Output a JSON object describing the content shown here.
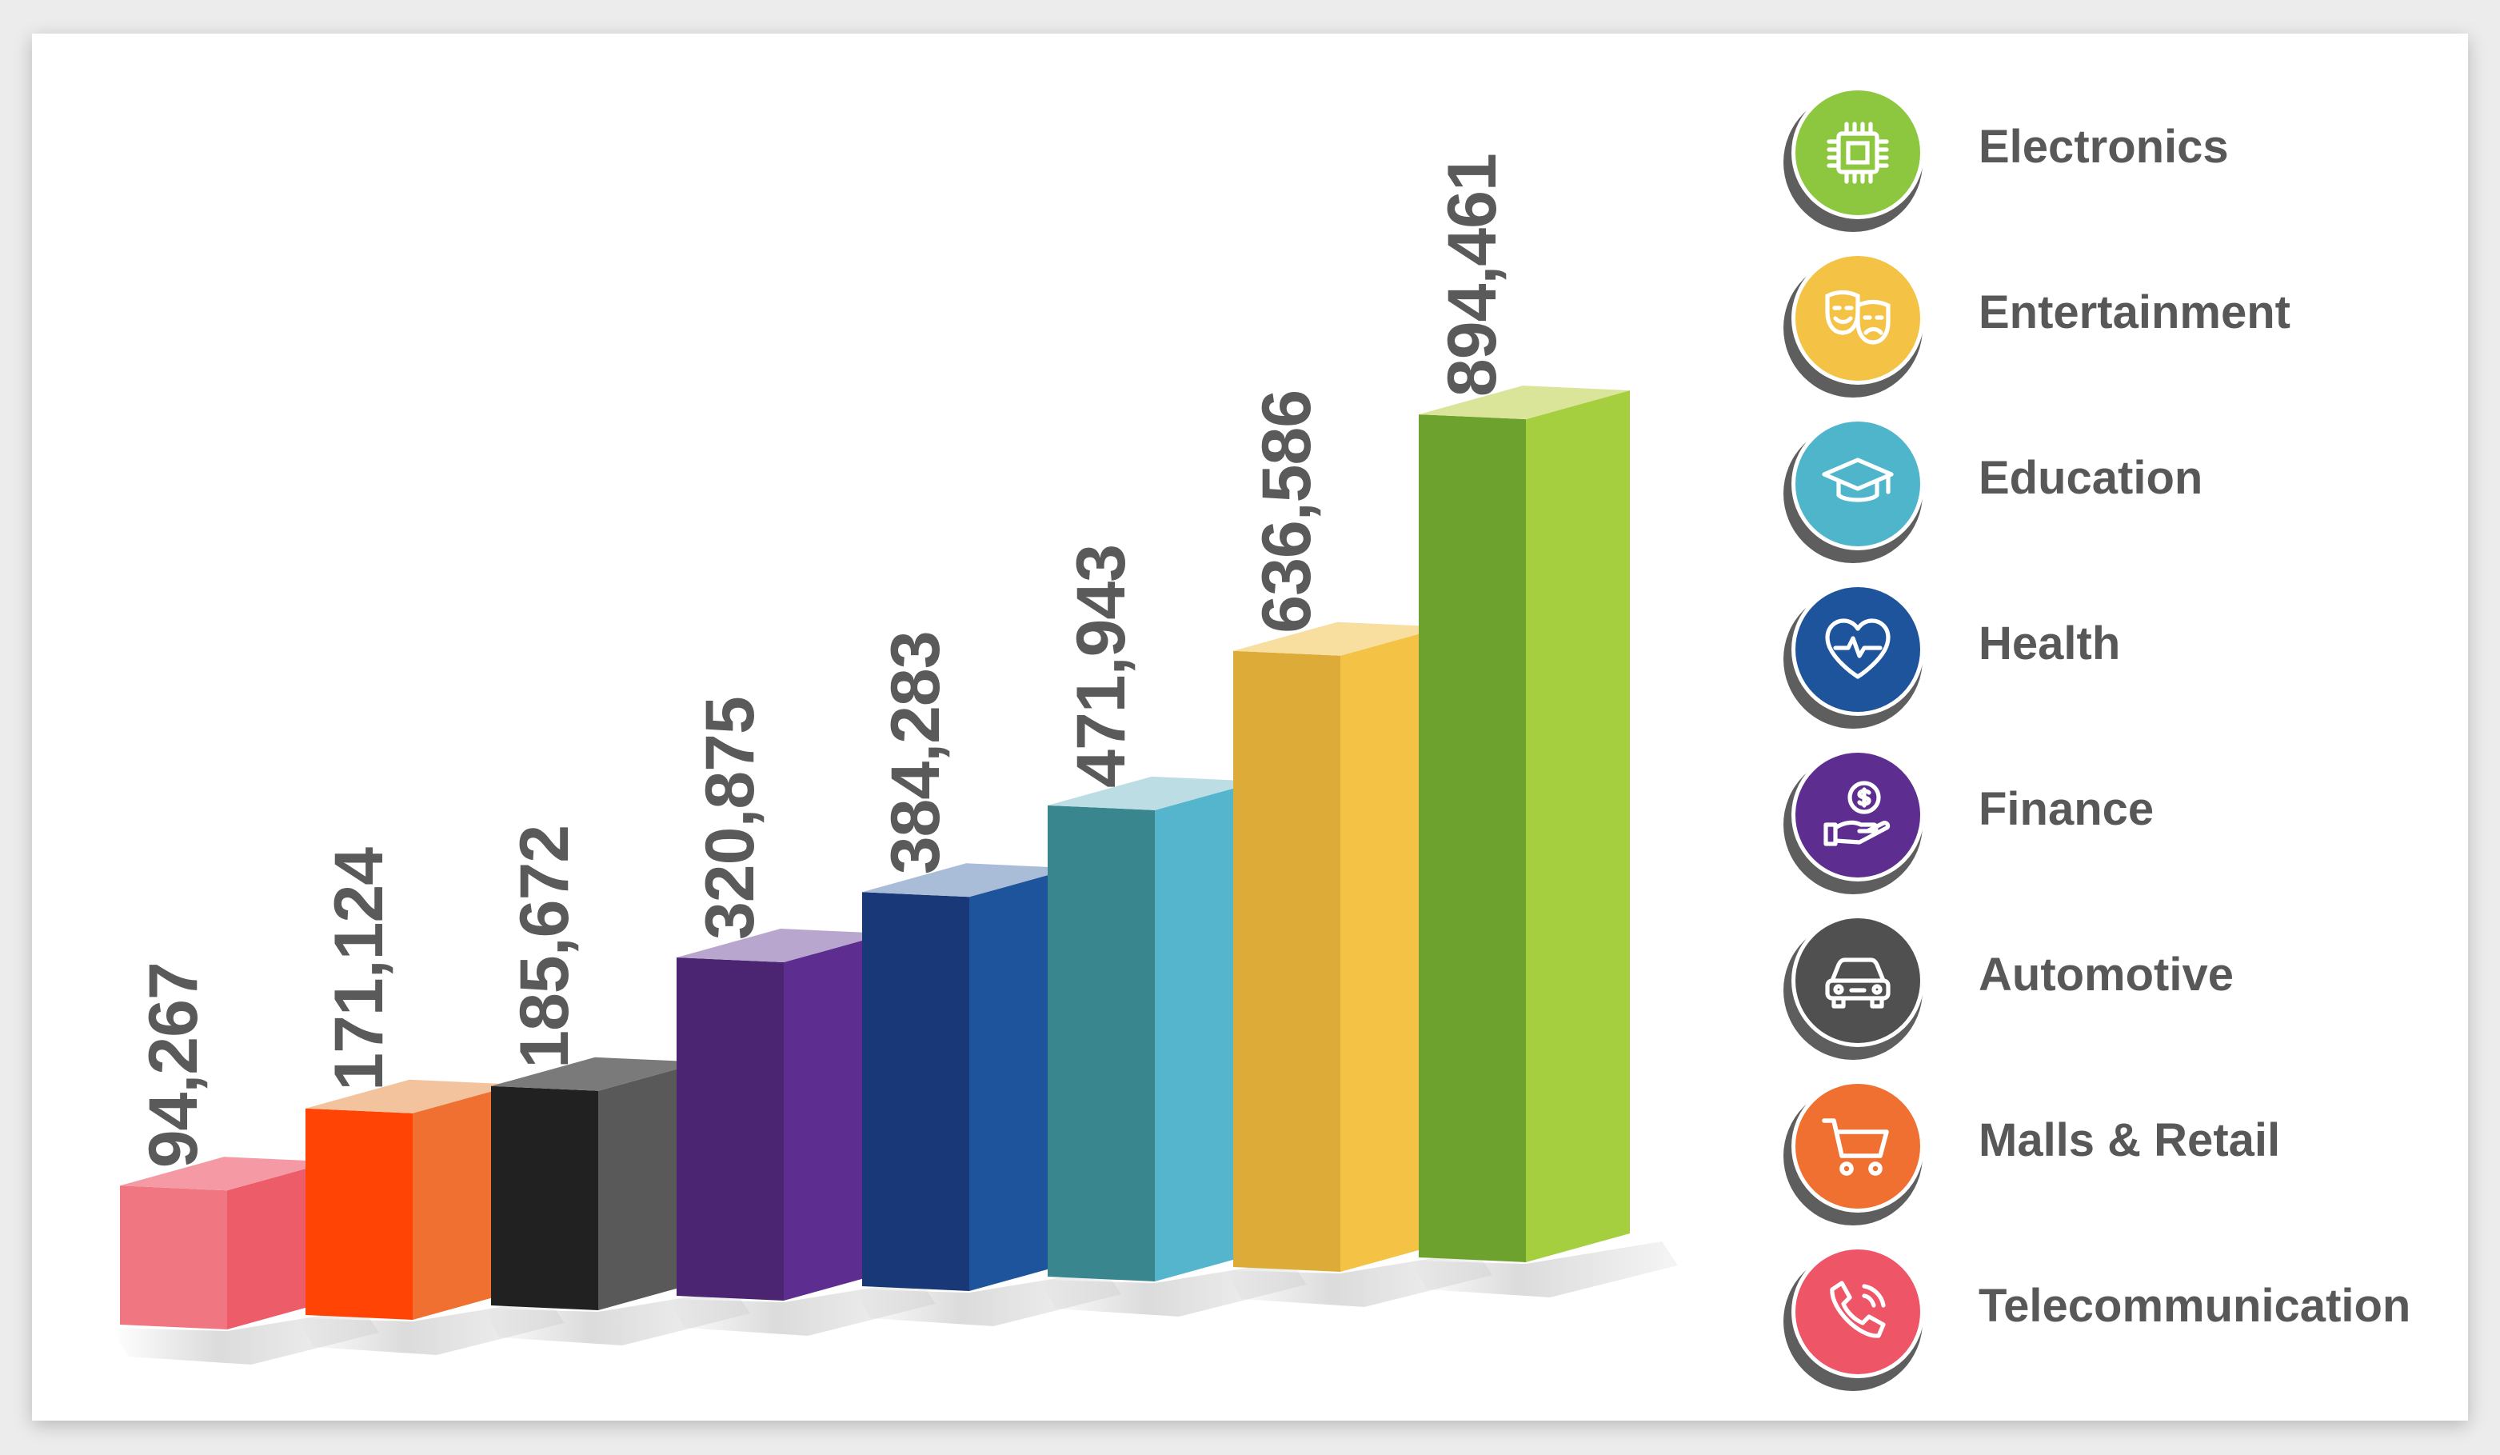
{
  "chart_data": {
    "type": "bar",
    "categories": [
      "Telecommunication",
      "Malls & Retail",
      "Automotive",
      "Finance",
      "Health",
      "Education",
      "Entertainment",
      "Electronics"
    ],
    "values": [
      94267,
      171124,
      185672,
      320875,
      384283,
      471943,
      636586,
      894461
    ],
    "value_labels": [
      "94,267",
      "171,124",
      "185,672",
      "320,875",
      "384,283",
      "471,943",
      "636,586",
      "894,461"
    ],
    "bar_colors": {
      "top": [
        "#f59aa4",
        "#f2c39d",
        "#7a7a7a",
        "#b8a6cf",
        "#a9bcd8",
        "#bddde5",
        "#f8df9f",
        "#dbe59a"
      ],
      "front": [
        "#f07682",
        "#ff4406",
        "#212121",
        "#4b2572",
        "#183877",
        "#3a868e",
        "#ddac38",
        "#6ea22e"
      ],
      "side": [
        "#ec5c69",
        "#ef7030",
        "#595959",
        "#5d2d8f",
        "#1e549b",
        "#54b5cc",
        "#f4c244",
        "#a6cf40"
      ]
    },
    "title": "",
    "xlabel": "",
    "ylabel": "",
    "grid": false,
    "legend_position": "right"
  },
  "legend": {
    "items": [
      {
        "label": "Electronics",
        "icon": "chip-icon",
        "color": "#8dc63f"
      },
      {
        "label": "Entertainment",
        "icon": "theater-masks-icon",
        "color": "#f4c244"
      },
      {
        "label": "Education",
        "icon": "graduation-cap-icon",
        "color": "#4fb5cb"
      },
      {
        "label": "Health",
        "icon": "heart-pulse-icon",
        "color": "#1e549b"
      },
      {
        "label": "Finance",
        "icon": "money-hand-icon",
        "color": "#5d2d8f"
      },
      {
        "label": "Automotive",
        "icon": "car-icon",
        "color": "#505050"
      },
      {
        "label": "Malls & Retail",
        "icon": "shopping-cart-icon",
        "color": "#ef7030"
      },
      {
        "label": "Telecommunication",
        "icon": "phone-icon",
        "color": "#ee5566"
      }
    ]
  }
}
